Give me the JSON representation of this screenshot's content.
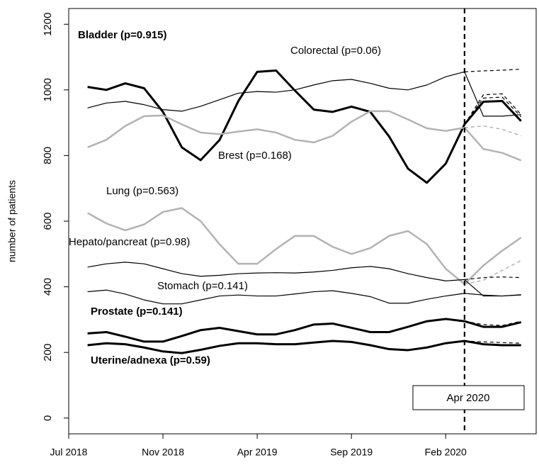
{
  "chart_data": {
    "type": "line",
    "y_label": "number of patients",
    "xlim": [
      0,
      24.8
    ],
    "xticks": [
      {
        "value": 0,
        "label": "Jul 2018"
      },
      {
        "value": 5,
        "label": "Nov 2018"
      },
      {
        "value": 10,
        "label": "Apr 2019"
      },
      {
        "value": 15,
        "label": "Sep 2019"
      },
      {
        "value": 20,
        "label": "Feb 2020"
      }
    ],
    "ylim": [
      -48,
      1248
    ],
    "yticks": [
      0,
      200,
      400,
      600,
      800,
      1000,
      1200
    ],
    "vline": {
      "x": 21,
      "label": "Apr 2020"
    },
    "series": [
      {
        "name": "Bladder (p=0.915)",
        "color": "#000000",
        "line_width": 3,
        "bold": true,
        "x": [
          1,
          2,
          3,
          4,
          5,
          6,
          7,
          8,
          9,
          10,
          11,
          12,
          13,
          14,
          15,
          16,
          17,
          18,
          19,
          20,
          21,
          22,
          23,
          24
        ],
        "values": [
          1009,
          1000,
          1020,
          1005,
          933,
          825,
          786,
          847,
          966,
          1055,
          1059,
          998,
          940,
          933,
          949,
          933,
          858,
          760,
          717,
          775,
          895,
          964,
          966,
          905
        ]
      },
      {
        "name": "Colorectal (p=0.06)",
        "color": "#000000",
        "line_width": 1.2,
        "bold": false,
        "x": [
          1,
          2,
          3,
          4,
          5,
          6,
          7,
          8,
          9,
          10,
          11,
          12,
          13,
          14,
          15,
          16,
          17,
          18,
          19,
          20,
          21,
          22,
          23,
          24
        ],
        "values": [
          945,
          960,
          965,
          955,
          940,
          935,
          950,
          970,
          990,
          995,
          993,
          1000,
          1015,
          1028,
          1032,
          1020,
          1005,
          1000,
          1015,
          1040,
          1055,
          920,
          920,
          925
        ]
      },
      {
        "name": "Brest (p=0.168)",
        "color": "#b3b3b3",
        "line_width": 2.5,
        "bold": false,
        "x": [
          1,
          2,
          3,
          4,
          5,
          6,
          7,
          8,
          9,
          10,
          11,
          12,
          13,
          14,
          15,
          16,
          17,
          18,
          19,
          20,
          21,
          22,
          23,
          24
        ],
        "values": [
          825,
          848,
          890,
          920,
          922,
          895,
          870,
          865,
          873,
          880,
          870,
          848,
          840,
          860,
          903,
          935,
          935,
          910,
          883,
          875,
          885,
          820,
          808,
          785
        ]
      },
      {
        "name": "Lung (p=0.563)",
        "color": "#b3b3b3",
        "line_width": 2.5,
        "bold": false,
        "x": [
          1,
          2,
          3,
          4,
          5,
          6,
          7,
          8,
          9,
          10,
          11,
          12,
          13,
          14,
          15,
          16,
          17,
          18,
          19,
          20,
          21,
          22,
          23,
          24
        ],
        "values": [
          625,
          593,
          572,
          590,
          628,
          640,
          600,
          530,
          470,
          470,
          515,
          555,
          555,
          522,
          500,
          518,
          555,
          570,
          530,
          455,
          408,
          465,
          510,
          550
        ]
      },
      {
        "name": "Hepato/pancreat (p=0.98)",
        "color": "#000000",
        "line_width": 1.2,
        "bold": false,
        "x": [
          1,
          2,
          3,
          4,
          5,
          6,
          7,
          8,
          9,
          10,
          11,
          12,
          13,
          14,
          15,
          16,
          17,
          18,
          19,
          20,
          21,
          22,
          23,
          24
        ],
        "values": [
          460,
          470,
          475,
          470,
          455,
          440,
          432,
          435,
          440,
          442,
          443,
          442,
          445,
          450,
          458,
          462,
          455,
          440,
          428,
          418,
          422,
          372,
          372,
          376
        ]
      },
      {
        "name": "Stomach (p=0.141)",
        "color": "#000000",
        "line_width": 1.2,
        "bold": false,
        "x": [
          1,
          2,
          3,
          4,
          5,
          6,
          7,
          8,
          9,
          10,
          11,
          12,
          13,
          14,
          15,
          16,
          17,
          18,
          19,
          20,
          21,
          22,
          23,
          24
        ],
        "values": [
          385,
          390,
          378,
          360,
          348,
          348,
          360,
          372,
          375,
          372,
          372,
          378,
          385,
          388,
          380,
          370,
          350,
          350,
          362,
          372,
          380,
          375,
          372,
          375
        ]
      },
      {
        "name": "Prostate (p=0.141)",
        "color": "#000000",
        "line_width": 3,
        "bold": true,
        "x": [
          1,
          2,
          3,
          4,
          5,
          6,
          7,
          8,
          9,
          10,
          11,
          12,
          13,
          14,
          15,
          16,
          17,
          18,
          19,
          20,
          21,
          22,
          23,
          24
        ],
        "values": [
          258,
          262,
          248,
          233,
          233,
          250,
          268,
          275,
          265,
          255,
          255,
          268,
          285,
          288,
          275,
          262,
          262,
          278,
          295,
          302,
          295,
          278,
          278,
          292
        ]
      },
      {
        "name": "Uterine/adnexa (p=0.59)",
        "color": "#000000",
        "line_width": 3,
        "bold": true,
        "x": [
          1,
          2,
          3,
          4,
          5,
          6,
          7,
          8,
          9,
          10,
          11,
          12,
          13,
          14,
          15,
          16,
          17,
          18,
          19,
          20,
          21,
          22,
          23,
          24
        ],
        "values": [
          222,
          228,
          225,
          215,
          203,
          198,
          208,
          220,
          228,
          228,
          225,
          225,
          230,
          235,
          232,
          222,
          210,
          207,
          215,
          228,
          235,
          225,
          222,
          222
        ]
      },
      {
        "color": "#000000",
        "line_width": 1.2,
        "dashed": true,
        "x": [
          21,
          22,
          23,
          24
        ],
        "values": [
          1055,
          1058,
          1060,
          1063
        ]
      },
      {
        "color": "#000000",
        "line_width": 1.2,
        "dashed": true,
        "x": [
          21,
          22,
          23,
          24
        ],
        "values": [
          895,
          985,
          988,
          925
        ]
      },
      {
        "color": "#000000",
        "line_width": 1.2,
        "dashed": true,
        "x": [
          21,
          22,
          23,
          24
        ],
        "values": [
          895,
          975,
          978,
          918
        ]
      },
      {
        "color": "#b3b3b3",
        "line_width": 1.5,
        "dashed": true,
        "x": [
          21,
          22,
          23,
          24
        ],
        "values": [
          885,
          890,
          880,
          860
        ]
      },
      {
        "color": "#b3b3b3",
        "line_width": 1.5,
        "dashed": true,
        "x": [
          21,
          22,
          23,
          24
        ],
        "values": [
          408,
          420,
          450,
          480
        ]
      },
      {
        "color": "#000000",
        "line_width": 1.2,
        "dashed": true,
        "x": [
          21,
          22,
          23,
          24
        ],
        "values": [
          422,
          428,
          430,
          428
        ]
      },
      {
        "color": "#000000",
        "line_width": 1.2,
        "dashed": true,
        "x": [
          21,
          22,
          23,
          24
        ],
        "values": [
          295,
          285,
          282,
          295
        ]
      },
      {
        "color": "#000000",
        "line_width": 1.2,
        "dashed": true,
        "x": [
          21,
          22,
          23,
          24
        ],
        "values": [
          235,
          232,
          230,
          228
        ]
      }
    ]
  }
}
